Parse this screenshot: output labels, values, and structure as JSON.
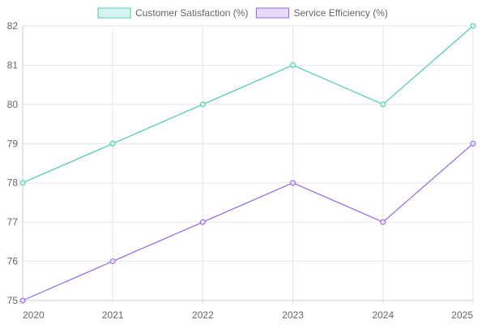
{
  "chart_data": {
    "type": "line",
    "title": "",
    "xlabel": "",
    "ylabel": "",
    "categories": [
      "2020",
      "2021",
      "2022",
      "2023",
      "2024",
      "2025"
    ],
    "ylim": [
      75,
      82
    ],
    "yticks": [
      75,
      76,
      77,
      78,
      79,
      80,
      81,
      82
    ],
    "grid": true,
    "legend_position": "top-center",
    "series": [
      {
        "name": "Customer Satisfaction (%)",
        "values": [
          78,
          79,
          80,
          81,
          80,
          82
        ],
        "color": "#4fc9b4",
        "fill": "#d6f4ef"
      },
      {
        "name": "Service Efficiency (%)",
        "values": [
          75,
          76,
          77,
          78,
          77,
          79
        ],
        "color": "#9467e6",
        "fill": "#e9dcfb"
      }
    ]
  }
}
